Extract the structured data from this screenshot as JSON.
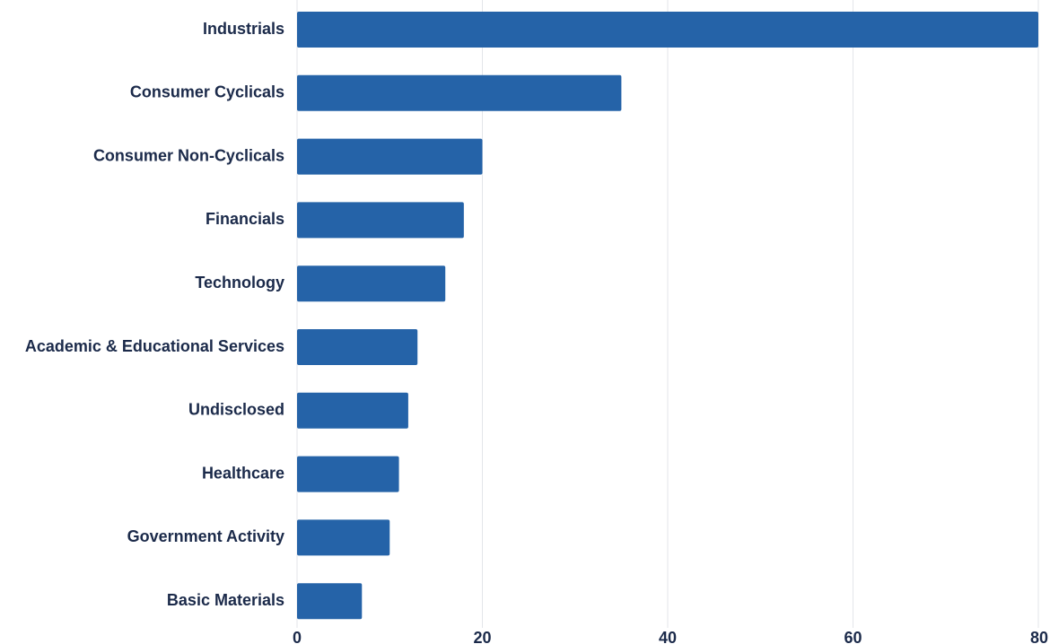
{
  "chart_data": {
    "type": "bar",
    "orientation": "horizontal",
    "categories": [
      "Industrials",
      "Consumer Cyclicals",
      "Consumer Non-Cyclicals",
      "Financials",
      "Technology",
      "Academic & Educational Services",
      "Undisclosed",
      "Healthcare",
      "Government Activity",
      "Basic Materials"
    ],
    "values": [
      80,
      35,
      20,
      18,
      16,
      13,
      12,
      11,
      10,
      7
    ],
    "title": "",
    "xlabel": "",
    "ylabel": "",
    "xlim": [
      0,
      80
    ],
    "xticks": [
      0,
      20,
      40,
      60,
      80
    ],
    "grid": "vertical",
    "legend": "none",
    "colors": {
      "bar": "#2563A8",
      "grid": "#E3E6EA",
      "text": "#1B2A4A",
      "axis": "#1B2A4A"
    }
  }
}
